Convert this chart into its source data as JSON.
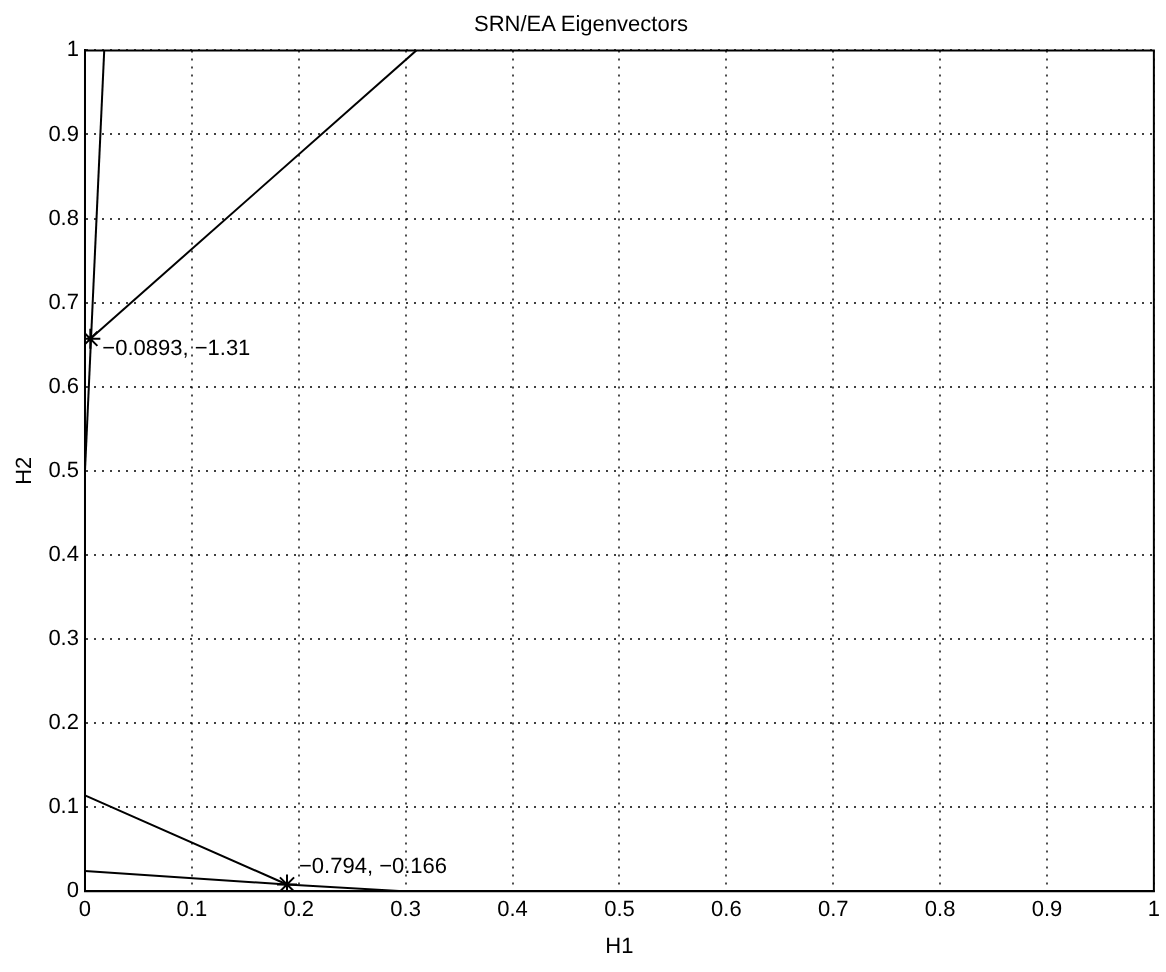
{
  "chart_data": {
    "type": "line",
    "title": "SRN/EA Eigenvectors",
    "xlabel": "H1",
    "ylabel": "H2",
    "xlim": [
      0,
      1
    ],
    "ylim": [
      0,
      1
    ],
    "xticks": [
      0,
      0.1,
      0.2,
      0.3,
      0.4,
      0.5,
      0.6,
      0.7,
      0.8,
      0.9,
      1
    ],
    "yticks": [
      0,
      0.1,
      0.2,
      0.3,
      0.4,
      0.5,
      0.6,
      0.7,
      0.8,
      0.9,
      1
    ],
    "grid": true,
    "line_style": "solid",
    "series": [
      {
        "color": "#000000",
        "x": [
          0,
          0.018
        ],
        "values": [
          0.5,
          1
        ],
        "marker": "none"
      },
      {
        "color": "#000000",
        "x": [
          0.005,
          0.31
        ],
        "values": [
          0.657,
          1
        ],
        "marker": "none"
      },
      {
        "color": "#000000",
        "x": [
          0,
          0.189,
          0.298
        ],
        "values": [
          0.114,
          0.008,
          0
        ],
        "marker": "none"
      },
      {
        "color": "#000000",
        "x": [
          0,
          0.189
        ],
        "values": [
          0.024,
          0.008
        ],
        "marker": "none"
      },
      {
        "type": "scatter",
        "color": "#000000",
        "x": [
          0.005,
          0.189
        ],
        "values": [
          0.657,
          0.008
        ],
        "marker": "cross"
      }
    ],
    "annotations": [
      {
        "text": "−0.0893, −1.31",
        "x": 0.005,
        "y": 0.657
      },
      {
        "text": "−0.794, −0.166",
        "x": 0.189,
        "y": 0.008
      }
    ]
  }
}
